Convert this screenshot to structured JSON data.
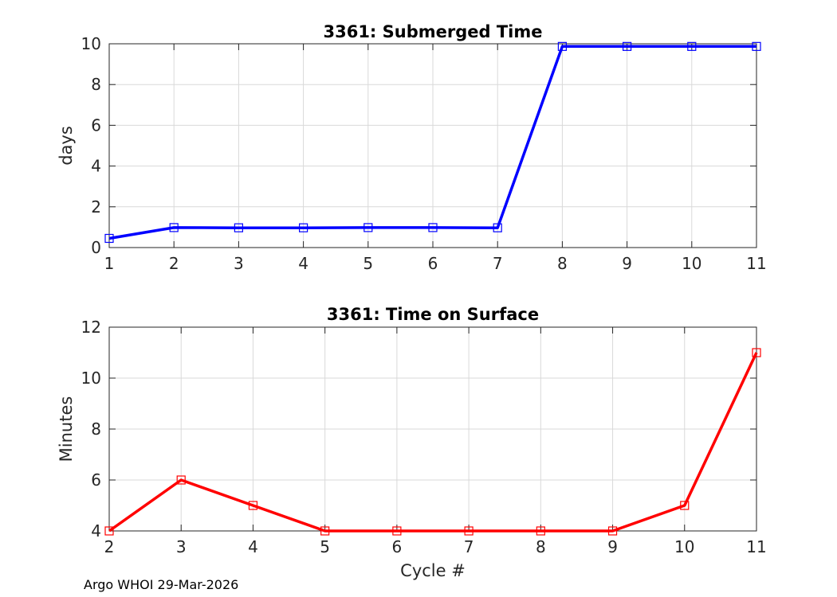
{
  "footer": "Argo WHOI 29-Mar-2026",
  "colors": {
    "top_series": "#0000ff",
    "bottom_series": "#ff0000",
    "grid": "#d9d9d9",
    "axis": "#262626"
  },
  "chart_data": [
    {
      "type": "line",
      "title": "3361: Submerged Time",
      "xlabel": "",
      "ylabel": "days",
      "x": [
        1,
        2,
        3,
        4,
        5,
        6,
        7,
        8,
        9,
        10,
        11
      ],
      "series": [
        {
          "values": [
            0.45,
            0.98,
            0.97,
            0.97,
            0.98,
            0.98,
            0.97,
            9.87,
            9.87,
            9.87,
            9.87
          ],
          "color": "#0000ff",
          "marker": "square"
        }
      ],
      "xlim": [
        1,
        11
      ],
      "ylim": [
        0,
        10
      ],
      "xticks": [
        1,
        2,
        3,
        4,
        5,
        6,
        7,
        8,
        9,
        10,
        11
      ],
      "yticks": [
        0,
        2,
        4,
        6,
        8,
        10
      ],
      "grid": true
    },
    {
      "type": "line",
      "title": "3361: Time on Surface",
      "xlabel": "Cycle #",
      "ylabel": "Minutes",
      "x": [
        2,
        3,
        4,
        5,
        6,
        7,
        8,
        9,
        10,
        11
      ],
      "series": [
        {
          "values": [
            4,
            6,
            5,
            4,
            4,
            4,
            4,
            4,
            5,
            11
          ],
          "color": "#ff0000",
          "marker": "square"
        }
      ],
      "xlim": [
        2,
        11
      ],
      "ylim": [
        4,
        12
      ],
      "xticks": [
        2,
        3,
        4,
        5,
        6,
        7,
        8,
        9,
        10,
        11
      ],
      "yticks": [
        4,
        6,
        8,
        10,
        12
      ],
      "grid": true
    }
  ]
}
